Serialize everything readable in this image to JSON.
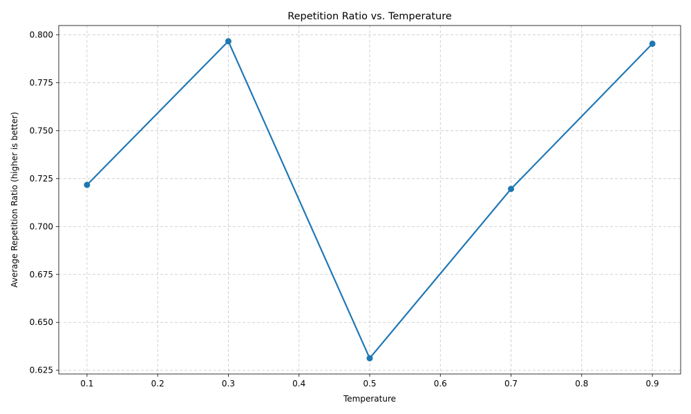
{
  "chart_data": {
    "type": "line",
    "title": "Repetition Ratio vs. Temperature",
    "xlabel": "Temperature",
    "ylabel": "Average Repetition Ratio (higher is better)",
    "x": [
      0.1,
      0.3,
      0.5,
      0.7,
      0.9
    ],
    "series": [
      {
        "values": [
          0.7217,
          0.7966,
          0.6313,
          0.7196,
          0.7953
        ]
      }
    ],
    "xlim": [
      0.06,
      0.94
    ],
    "ylim": [
      0.6231,
      0.8048
    ],
    "xticks": [
      0.1,
      0.2,
      0.3,
      0.4,
      0.5,
      0.6,
      0.7,
      0.8,
      0.9
    ],
    "xtick_labels": [
      "0.1",
      "0.2",
      "0.3",
      "0.4",
      "0.5",
      "0.6",
      "0.7",
      "0.8",
      "0.9"
    ],
    "yticks": [
      0.625,
      0.65,
      0.675,
      0.7,
      0.725,
      0.75,
      0.775,
      0.8
    ],
    "ytick_labels": [
      "0.625",
      "0.650",
      "0.675",
      "0.700",
      "0.725",
      "0.750",
      "0.775",
      "0.800"
    ],
    "grid": true,
    "line_color": "#1f77b4",
    "marker": "circle"
  }
}
